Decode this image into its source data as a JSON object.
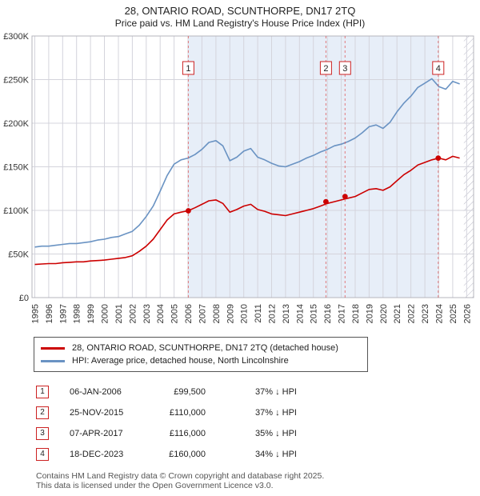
{
  "title": "28, ONTARIO ROAD, SCUNTHORPE, DN17 2TQ",
  "subtitle": "Price paid vs. HM Land Registry's House Price Index (HPI)",
  "legend": [
    {
      "label": "28, ONTARIO ROAD, SCUNTHORPE, DN17 2TQ (detached house)",
      "color": "#cc0000"
    },
    {
      "label": "HPI: Average price, detached house, North Lincolnshire",
      "color": "#6a93c3"
    }
  ],
  "transactions": [
    {
      "num": "1",
      "date": "06-JAN-2006",
      "price": "£99,500",
      "hpi": "37% ↓ HPI",
      "year": 2006.02,
      "value": 99500
    },
    {
      "num": "2",
      "date": "25-NOV-2015",
      "price": "£110,000",
      "hpi": "37% ↓ HPI",
      "year": 2015.9,
      "value": 110000
    },
    {
      "num": "3",
      "date": "07-APR-2017",
      "price": "£116,000",
      "hpi": "35% ↓ HPI",
      "year": 2017.27,
      "value": 116000
    },
    {
      "num": "4",
      "date": "18-DEC-2023",
      "price": "£160,000",
      "hpi": "34% ↓ HPI",
      "year": 2023.96,
      "value": 160000
    }
  ],
  "footer_line1": "Contains HM Land Registry data © Crown copyright and database right 2025.",
  "footer_line2": "This data is licensed under the Open Government Licence v3.0.",
  "chart_data": {
    "type": "line",
    "title": "28, ONTARIO ROAD, SCUNTHORPE, DN17 2TQ",
    "subtitle": "Price paid vs. HM Land Registry's House Price Index (HPI)",
    "xlim": [
      1994.8,
      2026.5
    ],
    "ylim": [
      0,
      300000
    ],
    "grid": true,
    "legend_position": "below",
    "shaded_color": "#e7eef8",
    "grid_color": "#d4d4dc",
    "dashed_line_color": "#e05555",
    "shaded_region": {
      "from": 2006.02,
      "to": 2023.96
    },
    "hatch_region": {
      "from": 2025.8,
      "to": 2026.5
    },
    "y_ticks": [
      {
        "v": 0,
        "label": "£0"
      },
      {
        "v": 50000,
        "label": "£50K"
      },
      {
        "v": 100000,
        "label": "£100K"
      },
      {
        "v": 150000,
        "label": "£150K"
      },
      {
        "v": 200000,
        "label": "£200K"
      },
      {
        "v": 250000,
        "label": "£250K"
      },
      {
        "v": 300000,
        "label": "£300K"
      }
    ],
    "x_ticks": [
      1995,
      1996,
      1997,
      1998,
      1999,
      2000,
      2001,
      2002,
      2003,
      2004,
      2005,
      2006,
      2007,
      2008,
      2009,
      2010,
      2011,
      2012,
      2013,
      2014,
      2015,
      2016,
      2017,
      2018,
      2019,
      2020,
      2021,
      2022,
      2023,
      2024,
      2025,
      2026
    ],
    "x": [
      1995.0,
      1995.5,
      1996.0,
      1996.5,
      1997.0,
      1997.5,
      1998.0,
      1998.5,
      1999.0,
      1999.5,
      2000.0,
      2000.5,
      2001.0,
      2001.5,
      2002.0,
      2002.5,
      2003.0,
      2003.5,
      2004.0,
      2004.5,
      2005.0,
      2005.5,
      2006.0,
      2006.5,
      2007.0,
      2007.5,
      2008.0,
      2008.5,
      2009.0,
      2009.5,
      2010.0,
      2010.5,
      2011.0,
      2011.5,
      2012.0,
      2012.5,
      2013.0,
      2013.5,
      2014.0,
      2014.5,
      2015.0,
      2015.5,
      2016.0,
      2016.5,
      2017.0,
      2017.5,
      2018.0,
      2018.5,
      2019.0,
      2019.5,
      2020.0,
      2020.5,
      2021.0,
      2021.5,
      2022.0,
      2022.5,
      2023.0,
      2023.5,
      2024.0,
      2024.5,
      2025.0,
      2025.5
    ],
    "series": [
      {
        "name": "28, ONTARIO ROAD, SCUNTHORPE, DN17 2TQ (detached house)",
        "color": "#cc0000",
        "values": [
          38000,
          38500,
          39000,
          39000,
          40000,
          40500,
          41000,
          41000,
          42000,
          42500,
          43000,
          44000,
          45000,
          46000,
          48000,
          53000,
          59000,
          67000,
          78000,
          89000,
          96000,
          98000,
          99500,
          103000,
          107000,
          111000,
          112000,
          108000,
          98000,
          101000,
          105000,
          107000,
          101000,
          99000,
          96000,
          95000,
          94000,
          96000,
          98000,
          100000,
          102000,
          105000,
          108000,
          110000,
          112000,
          114000,
          116000,
          120000,
          124000,
          125000,
          123000,
          127000,
          134000,
          141000,
          146000,
          152000,
          155000,
          158000,
          160000,
          158000,
          162000,
          160000
        ]
      },
      {
        "name": "HPI: Average price, detached house, North Lincolnshire",
        "color": "#6a93c3",
        "values": [
          58000,
          59000,
          59000,
          60000,
          61000,
          62000,
          62000,
          63000,
          64000,
          66000,
          67000,
          69000,
          70000,
          73000,
          76000,
          83000,
          93000,
          105000,
          122000,
          140000,
          153000,
          158000,
          160000,
          164000,
          170000,
          178000,
          180000,
          174000,
          157000,
          161000,
          168000,
          171000,
          161000,
          158000,
          154000,
          151000,
          150000,
          153000,
          156000,
          160000,
          163000,
          167000,
          170000,
          174000,
          176000,
          179000,
          183000,
          189000,
          196000,
          198000,
          194000,
          201000,
          213000,
          223000,
          231000,
          241000,
          246000,
          251000,
          242000,
          239000,
          248000,
          245000
        ]
      }
    ]
  }
}
